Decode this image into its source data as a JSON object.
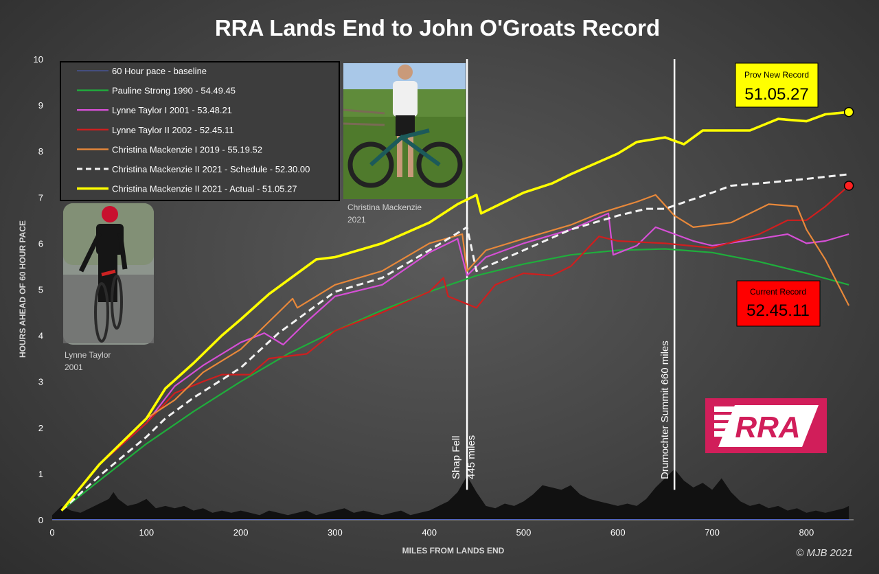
{
  "chart_data": {
    "type": "line",
    "title": "RRA Lands End to John O'Groats Record",
    "xlabel": "MILES FROM LANDS END",
    "ylabel": "HOURS AHEAD OF 60 HOUR PACE",
    "xlim": [
      0,
      850
    ],
    "ylim": [
      0,
      10
    ],
    "xticks": [
      0,
      100,
      200,
      300,
      400,
      500,
      600,
      700,
      800
    ],
    "yticks": [
      0,
      1,
      2,
      3,
      4,
      5,
      6,
      7,
      8,
      9,
      10
    ],
    "grid": false,
    "legend_position": "top-left",
    "series": [
      {
        "name": "60 Hour pace - baseline",
        "color": "#4a5fc1",
        "style": "solid",
        "points": [
          [
            0,
            0
          ],
          [
            845,
            0
          ]
        ]
      },
      {
        "name": "Pauline Strong 1990 - 54.49.45",
        "color": "#1fae3c",
        "style": "solid",
        "points": [
          [
            10,
            0.2
          ],
          [
            50,
            0.85
          ],
          [
            100,
            1.65
          ],
          [
            150,
            2.35
          ],
          [
            200,
            3.0
          ],
          [
            250,
            3.6
          ],
          [
            300,
            4.1
          ],
          [
            350,
            4.55
          ],
          [
            400,
            4.95
          ],
          [
            450,
            5.3
          ],
          [
            500,
            5.55
          ],
          [
            550,
            5.75
          ],
          [
            600,
            5.85
          ],
          [
            650,
            5.88
          ],
          [
            700,
            5.8
          ],
          [
            750,
            5.6
          ],
          [
            800,
            5.35
          ],
          [
            845,
            5.1
          ]
        ]
      },
      {
        "name": "Lynne Taylor I 2001 - 53.48.21",
        "color": "#d64fd6",
        "style": "solid",
        "points": [
          [
            10,
            0.2
          ],
          [
            50,
            1.2
          ],
          [
            100,
            2.1
          ],
          [
            130,
            2.9
          ],
          [
            160,
            3.35
          ],
          [
            200,
            3.85
          ],
          [
            225,
            4.05
          ],
          [
            245,
            3.8
          ],
          [
            270,
            4.3
          ],
          [
            300,
            4.85
          ],
          [
            350,
            5.1
          ],
          [
            400,
            5.8
          ],
          [
            430,
            6.1
          ],
          [
            440,
            5.3
          ],
          [
            460,
            5.7
          ],
          [
            500,
            6.0
          ],
          [
            550,
            6.3
          ],
          [
            590,
            6.65
          ],
          [
            595,
            5.75
          ],
          [
            620,
            5.95
          ],
          [
            640,
            6.35
          ],
          [
            680,
            6.05
          ],
          [
            700,
            5.95
          ],
          [
            750,
            6.1
          ],
          [
            780,
            6.2
          ],
          [
            800,
            6.0
          ],
          [
            820,
            6.05
          ],
          [
            845,
            6.2
          ]
        ]
      },
      {
        "name": "Lynne Taylor II 2002 - 52.45.11",
        "color": "#d01e1e",
        "style": "solid",
        "points": [
          [
            10,
            0.2
          ],
          [
            50,
            1.2
          ],
          [
            100,
            2.1
          ],
          [
            130,
            2.75
          ],
          [
            160,
            3.0
          ],
          [
            180,
            3.15
          ],
          [
            210,
            3.15
          ],
          [
            230,
            3.5
          ],
          [
            270,
            3.6
          ],
          [
            300,
            4.1
          ],
          [
            350,
            4.5
          ],
          [
            400,
            4.95
          ],
          [
            415,
            5.25
          ],
          [
            420,
            4.85
          ],
          [
            450,
            4.6
          ],
          [
            470,
            5.1
          ],
          [
            500,
            5.35
          ],
          [
            530,
            5.3
          ],
          [
            550,
            5.5
          ],
          [
            580,
            6.15
          ],
          [
            600,
            6.05
          ],
          [
            650,
            6.0
          ],
          [
            700,
            5.9
          ],
          [
            750,
            6.2
          ],
          [
            780,
            6.5
          ],
          [
            800,
            6.5
          ],
          [
            820,
            6.8
          ],
          [
            845,
            7.25
          ]
        ]
      },
      {
        "name": "Christina Mackenzie I 2019 - 55.19.52",
        "color": "#e8883a",
        "style": "solid",
        "points": [
          [
            10,
            0.2
          ],
          [
            50,
            1.2
          ],
          [
            100,
            2.2
          ],
          [
            130,
            2.6
          ],
          [
            160,
            3.2
          ],
          [
            200,
            3.7
          ],
          [
            240,
            4.5
          ],
          [
            255,
            4.8
          ],
          [
            260,
            4.6
          ],
          [
            300,
            5.1
          ],
          [
            350,
            5.4
          ],
          [
            400,
            6.0
          ],
          [
            435,
            6.2
          ],
          [
            440,
            5.4
          ],
          [
            460,
            5.85
          ],
          [
            500,
            6.1
          ],
          [
            550,
            6.4
          ],
          [
            580,
            6.65
          ],
          [
            620,
            6.9
          ],
          [
            640,
            7.05
          ],
          [
            660,
            6.6
          ],
          [
            680,
            6.35
          ],
          [
            720,
            6.45
          ],
          [
            760,
            6.85
          ],
          [
            790,
            6.8
          ],
          [
            800,
            6.3
          ],
          [
            820,
            5.65
          ],
          [
            845,
            4.65
          ]
        ]
      },
      {
        "name": "Christina Mackenzie II 2021 - Schedule - 52.30.00",
        "color": "#f2f2f2",
        "style": "dashed",
        "points": [
          [
            10,
            0.2
          ],
          [
            50,
            0.95
          ],
          [
            100,
            1.8
          ],
          [
            120,
            2.2
          ],
          [
            150,
            2.65
          ],
          [
            200,
            3.3
          ],
          [
            240,
            4.05
          ],
          [
            300,
            4.95
          ],
          [
            350,
            5.25
          ],
          [
            400,
            5.85
          ],
          [
            440,
            6.35
          ],
          [
            450,
            5.4
          ],
          [
            500,
            5.85
          ],
          [
            550,
            6.3
          ],
          [
            600,
            6.6
          ],
          [
            630,
            6.75
          ],
          [
            650,
            6.75
          ],
          [
            700,
            7.1
          ],
          [
            720,
            7.25
          ],
          [
            750,
            7.3
          ],
          [
            800,
            7.4
          ],
          [
            845,
            7.5
          ]
        ]
      },
      {
        "name": "Christina Mackenzie II 2021 - Actual - 51.05.27",
        "color": "#ffff00",
        "style": "solid",
        "points": [
          [
            10,
            0.2
          ],
          [
            50,
            1.2
          ],
          [
            100,
            2.2
          ],
          [
            120,
            2.85
          ],
          [
            150,
            3.4
          ],
          [
            180,
            4.0
          ],
          [
            200,
            4.35
          ],
          [
            230,
            4.9
          ],
          [
            260,
            5.35
          ],
          [
            280,
            5.65
          ],
          [
            300,
            5.7
          ],
          [
            350,
            6.0
          ],
          [
            400,
            6.45
          ],
          [
            430,
            6.85
          ],
          [
            450,
            7.05
          ],
          [
            455,
            6.65
          ],
          [
            500,
            7.1
          ],
          [
            530,
            7.3
          ],
          [
            550,
            7.5
          ],
          [
            600,
            7.95
          ],
          [
            620,
            8.2
          ],
          [
            650,
            8.3
          ],
          [
            670,
            8.15
          ],
          [
            690,
            8.45
          ],
          [
            740,
            8.45
          ],
          [
            770,
            8.7
          ],
          [
            800,
            8.65
          ],
          [
            820,
            8.8
          ],
          [
            845,
            8.85
          ]
        ]
      }
    ],
    "annotations": [
      {
        "name": "shap-fell",
        "x": 440,
        "label": "Shap Fell\n445 miles"
      },
      {
        "name": "drumochter",
        "x": 660,
        "label": "Drumochter Summit 660 miles"
      }
    ],
    "elevation_profile": [
      [
        0,
        0.1
      ],
      [
        10,
        0.3
      ],
      [
        20,
        0.2
      ],
      [
        30,
        0.15
      ],
      [
        40,
        0.25
      ],
      [
        50,
        0.35
      ],
      [
        60,
        0.45
      ],
      [
        65,
        0.6
      ],
      [
        70,
        0.45
      ],
      [
        80,
        0.3
      ],
      [
        90,
        0.35
      ],
      [
        100,
        0.45
      ],
      [
        110,
        0.25
      ],
      [
        120,
        0.3
      ],
      [
        130,
        0.25
      ],
      [
        140,
        0.3
      ],
      [
        150,
        0.2
      ],
      [
        160,
        0.25
      ],
      [
        170,
        0.15
      ],
      [
        180,
        0.2
      ],
      [
        190,
        0.15
      ],
      [
        200,
        0.2
      ],
      [
        210,
        0.15
      ],
      [
        220,
        0.1
      ],
      [
        230,
        0.2
      ],
      [
        240,
        0.15
      ],
      [
        250,
        0.1
      ],
      [
        260,
        0.15
      ],
      [
        270,
        0.2
      ],
      [
        280,
        0.1
      ],
      [
        290,
        0.15
      ],
      [
        300,
        0.2
      ],
      [
        310,
        0.25
      ],
      [
        320,
        0.15
      ],
      [
        330,
        0.2
      ],
      [
        340,
        0.15
      ],
      [
        350,
        0.1
      ],
      [
        360,
        0.15
      ],
      [
        370,
        0.2
      ],
      [
        380,
        0.1
      ],
      [
        390,
        0.15
      ],
      [
        400,
        0.2
      ],
      [
        410,
        0.3
      ],
      [
        420,
        0.4
      ],
      [
        430,
        0.6
      ],
      [
        440,
        0.95
      ],
      [
        450,
        0.6
      ],
      [
        460,
        0.3
      ],
      [
        470,
        0.25
      ],
      [
        480,
        0.35
      ],
      [
        490,
        0.3
      ],
      [
        500,
        0.4
      ],
      [
        510,
        0.55
      ],
      [
        520,
        0.75
      ],
      [
        530,
        0.7
      ],
      [
        540,
        0.65
      ],
      [
        550,
        0.75
      ],
      [
        560,
        0.55
      ],
      [
        570,
        0.45
      ],
      [
        580,
        0.4
      ],
      [
        590,
        0.35
      ],
      [
        600,
        0.3
      ],
      [
        610,
        0.35
      ],
      [
        620,
        0.3
      ],
      [
        630,
        0.45
      ],
      [
        640,
        0.7
      ],
      [
        650,
        0.9
      ],
      [
        660,
        1.1
      ],
      [
        670,
        0.85
      ],
      [
        680,
        0.7
      ],
      [
        690,
        0.8
      ],
      [
        700,
        0.65
      ],
      [
        710,
        0.9
      ],
      [
        720,
        0.6
      ],
      [
        730,
        0.4
      ],
      [
        740,
        0.3
      ],
      [
        750,
        0.35
      ],
      [
        760,
        0.25
      ],
      [
        770,
        0.3
      ],
      [
        780,
        0.2
      ],
      [
        790,
        0.25
      ],
      [
        800,
        0.15
      ],
      [
        810,
        0.2
      ],
      [
        820,
        0.15
      ],
      [
        830,
        0.2
      ],
      [
        840,
        0.25
      ],
      [
        845,
        0.3
      ]
    ],
    "end_markers": [
      {
        "series": "Christina Mackenzie II 2021 - Actual - 51.05.27",
        "color": "#ffff00"
      },
      {
        "series": "Lynne Taylor II 2002 - 52.45.11",
        "color": "#ff2020"
      }
    ]
  },
  "record_boxes": {
    "prov_new": {
      "label": "Prov New Record",
      "value": "51.05.27",
      "bg": "#ffff00",
      "fg": "#000000"
    },
    "current": {
      "label": "Current Record",
      "value": "52.45.11",
      "bg": "#ff0000",
      "fg": "#000000"
    }
  },
  "photos": {
    "christina": {
      "caption_line1": "Christina Mackenzie",
      "caption_line2": "2021"
    },
    "lynne": {
      "caption_line1": "Lynne Taylor",
      "caption_line2": "2001"
    }
  },
  "logo": {
    "text": "RRA",
    "bg": "#d11e5a"
  },
  "copyright": "© MJB 2021"
}
